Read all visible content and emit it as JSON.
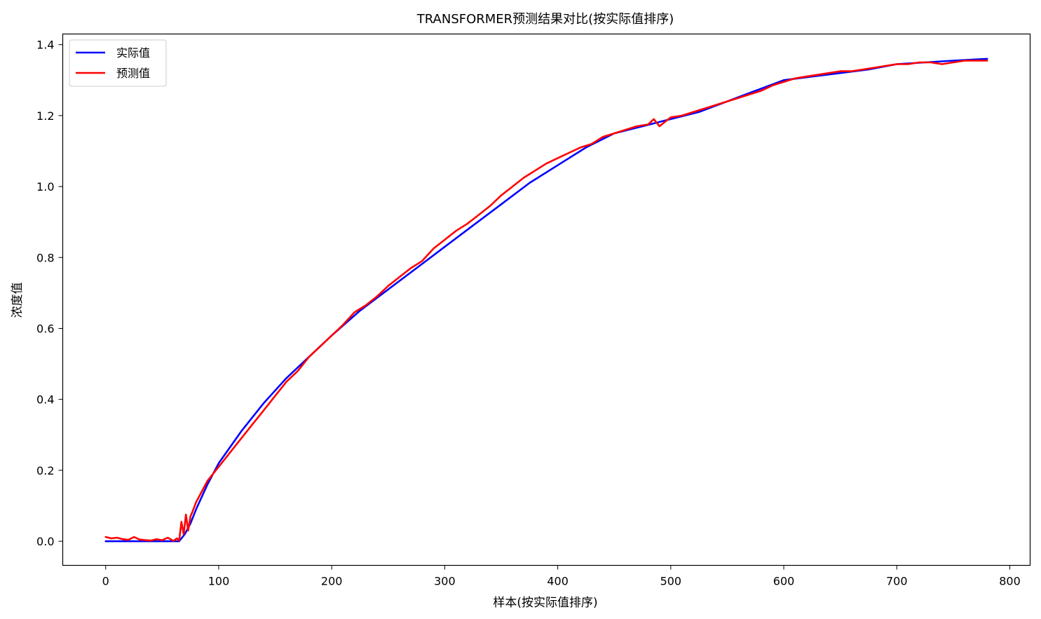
{
  "chart_data": {
    "type": "line",
    "title": "TRANSFORMER预测结果对比(按实际值排序)",
    "xlabel": "样本(按实际值排序)",
    "ylabel": "浓度值",
    "xlim": [
      -38,
      818
    ],
    "ylim": [
      -0.068,
      1.43
    ],
    "xticks": [
      0,
      100,
      200,
      300,
      400,
      500,
      600,
      700,
      800
    ],
    "yticks": [
      0.0,
      0.2,
      0.4,
      0.6,
      0.8,
      1.0,
      1.2,
      1.4
    ],
    "ytick_labels": [
      "0.0",
      "0.2",
      "0.4",
      "0.6",
      "0.8",
      "1.0",
      "1.2",
      "1.4"
    ],
    "grid": false,
    "legend_position": "top-left",
    "series": [
      {
        "name": "实际值",
        "color": "#0000ff",
        "x": [
          0,
          65,
          70,
          75,
          80,
          90,
          100,
          120,
          140,
          160,
          180,
          200,
          225,
          250,
          275,
          300,
          325,
          350,
          375,
          400,
          425,
          450,
          475,
          500,
          525,
          550,
          575,
          600,
          625,
          650,
          675,
          700,
          725,
          750,
          780
        ],
        "y": [
          0.0,
          0.0,
          0.02,
          0.05,
          0.09,
          0.16,
          0.22,
          0.31,
          0.39,
          0.46,
          0.52,
          0.58,
          0.65,
          0.71,
          0.77,
          0.83,
          0.89,
          0.95,
          1.01,
          1.06,
          1.11,
          1.15,
          1.17,
          1.19,
          1.21,
          1.24,
          1.27,
          1.3,
          1.31,
          1.32,
          1.33,
          1.345,
          1.35,
          1.355,
          1.36
        ]
      },
      {
        "name": "预测值",
        "color": "#ff0000",
        "x": [
          0,
          5,
          10,
          15,
          20,
          25,
          30,
          35,
          40,
          45,
          50,
          55,
          60,
          63,
          65,
          67,
          69,
          71,
          73,
          75,
          77,
          80,
          85,
          90,
          95,
          100,
          110,
          120,
          130,
          140,
          150,
          160,
          170,
          180,
          190,
          200,
          210,
          220,
          230,
          240,
          250,
          260,
          270,
          280,
          290,
          300,
          310,
          320,
          330,
          340,
          350,
          360,
          370,
          380,
          390,
          400,
          410,
          420,
          430,
          440,
          450,
          460,
          470,
          480,
          485,
          490,
          500,
          510,
          520,
          530,
          540,
          550,
          560,
          570,
          580,
          590,
          600,
          610,
          620,
          630,
          640,
          650,
          660,
          670,
          680,
          690,
          700,
          710,
          720,
          730,
          740,
          750,
          760,
          770,
          780
        ],
        "y": [
          0.012,
          0.008,
          0.01,
          0.006,
          0.004,
          0.012,
          0.005,
          0.003,
          0.002,
          0.006,
          0.003,
          0.01,
          0.001,
          0.008,
          0.002,
          0.055,
          0.02,
          0.075,
          0.03,
          0.07,
          0.085,
          0.11,
          0.14,
          0.17,
          0.19,
          0.21,
          0.25,
          0.29,
          0.33,
          0.37,
          0.41,
          0.45,
          0.48,
          0.52,
          0.55,
          0.58,
          0.61,
          0.645,
          0.665,
          0.69,
          0.72,
          0.745,
          0.77,
          0.79,
          0.825,
          0.85,
          0.875,
          0.895,
          0.92,
          0.945,
          0.975,
          1.0,
          1.025,
          1.045,
          1.065,
          1.08,
          1.095,
          1.11,
          1.12,
          1.14,
          1.15,
          1.16,
          1.17,
          1.175,
          1.19,
          1.17,
          1.195,
          1.2,
          1.21,
          1.22,
          1.23,
          1.24,
          1.25,
          1.26,
          1.27,
          1.285,
          1.295,
          1.305,
          1.31,
          1.315,
          1.32,
          1.325,
          1.325,
          1.33,
          1.335,
          1.34,
          1.345,
          1.345,
          1.35,
          1.35,
          1.345,
          1.35,
          1.355,
          1.355,
          1.355
        ]
      }
    ]
  }
}
